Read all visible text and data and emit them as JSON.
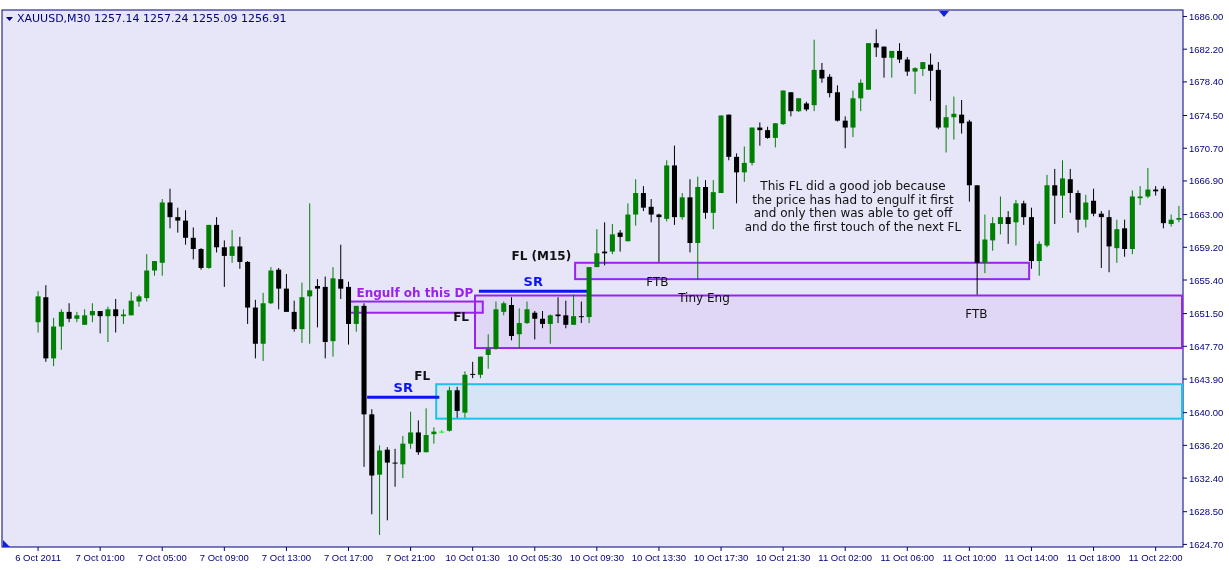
{
  "chart_data": {
    "type": "candlestick",
    "title": "XAUUSD,M30  1257.14 1257.24 1255.09 1256.91",
    "categories": [
      "6 Oct 2011",
      null,
      null,
      null,
      null,
      null,
      null,
      null,
      "7 Oct 01:00",
      null,
      null,
      null,
      null,
      null,
      null,
      null,
      "7 Oct 05:00",
      null,
      null,
      null,
      null,
      null,
      null,
      null,
      "7 Oct 09:00",
      null,
      null,
      null,
      null,
      null,
      null,
      null,
      "7 Oct 13:00",
      null,
      null,
      null,
      null,
      null,
      null,
      null,
      "7 Oct 17:00",
      null,
      null,
      null,
      null,
      null,
      null,
      null,
      "7 Oct 21:00",
      null,
      null,
      null,
      null,
      null,
      null,
      null,
      "10 Oct 01:30",
      null,
      null,
      null,
      null,
      null,
      null,
      null,
      "10 Oct 05:30",
      null,
      null,
      null,
      null,
      null,
      null,
      null,
      "10 Oct 09:30",
      null,
      null,
      null,
      null,
      null,
      null,
      null,
      "10 Oct 13:30",
      null,
      null,
      null,
      null,
      null,
      null,
      null,
      "10 Oct 17:30",
      null,
      null,
      null,
      null,
      null,
      null,
      null,
      "10 Oct 21:30",
      null,
      null,
      null,
      null,
      null,
      null,
      null,
      "11 Oct 02:00",
      null,
      null,
      null,
      null,
      null,
      null,
      null,
      "11 Oct 06:00",
      null,
      null,
      null,
      null,
      null,
      null,
      null,
      "11 Oct 10:00",
      null,
      null,
      null,
      null,
      null,
      null,
      null,
      "11 Oct 14:00",
      null,
      null,
      null,
      null,
      null,
      null,
      null,
      "11 Oct 18:00",
      null,
      null,
      null,
      null,
      null,
      null,
      null,
      "11 Oct 22:00",
      null,
      null,
      null
    ],
    "ohlc": [
      [
        1650.5,
        1654.1,
        1649.3,
        1653.5
      ],
      [
        1653.4,
        1654.8,
        1645.9,
        1646.3
      ],
      [
        1646.3,
        1651.0,
        1645.4,
        1650.0
      ],
      [
        1650.0,
        1652.0,
        1647.3,
        1651.7
      ],
      [
        1651.7,
        1652.7,
        1650.5,
        1650.9
      ],
      [
        1650.9,
        1651.7,
        1650.5,
        1651.3
      ],
      [
        1650.2,
        1652.0,
        1650.2,
        1651.3
      ],
      [
        1651.3,
        1652.7,
        1650.5,
        1651.8
      ],
      [
        1651.8,
        1651.8,
        1649.2,
        1651.2
      ],
      [
        1651.2,
        1652.3,
        1648.2,
        1652.0
      ],
      [
        1652.0,
        1653.2,
        1649.3,
        1651.2
      ],
      [
        1651.2,
        1652.0,
        1650.3,
        1651.4
      ],
      [
        1651.3,
        1654.0,
        1651.3,
        1653.0
      ],
      [
        1652.9,
        1653.7,
        1652.3,
        1653.5
      ],
      [
        1653.3,
        1658.4,
        1652.9,
        1656.5
      ],
      [
        1656.5,
        1657.6,
        1655.9,
        1657.6
      ],
      [
        1657.4,
        1664.8,
        1655.9,
        1664.4
      ],
      [
        1664.4,
        1666.0,
        1661.4,
        1662.7
      ],
      [
        1662.7,
        1663.8,
        1660.9,
        1662.3
      ],
      [
        1662.3,
        1663.5,
        1659.5,
        1660.3
      ],
      [
        1660.3,
        1661.5,
        1657.8,
        1659.0
      ],
      [
        1659.0,
        1659.1,
        1656.6,
        1656.8
      ],
      [
        1656.8,
        1661.8,
        1656.7,
        1661.8
      ],
      [
        1661.8,
        1662.7,
        1658.6,
        1659.2
      ],
      [
        1659.2,
        1660.0,
        1654.6,
        1658.2
      ],
      [
        1658.2,
        1661.2,
        1657.4,
        1659.3
      ],
      [
        1659.3,
        1660.4,
        1656.7,
        1657.5
      ],
      [
        1657.5,
        1657.6,
        1650.3,
        1652.2
      ],
      [
        1652.2,
        1653.1,
        1646.3,
        1648.0
      ],
      [
        1648.0,
        1653.9,
        1646.0,
        1652.7
      ],
      [
        1652.7,
        1656.9,
        1652.6,
        1656.5
      ],
      [
        1656.6,
        1656.8,
        1652.0,
        1654.4
      ],
      [
        1654.4,
        1656.1,
        1651.7,
        1651.7
      ],
      [
        1651.7,
        1653.0,
        1649.4,
        1649.7
      ],
      [
        1649.7,
        1655.1,
        1648.1,
        1653.4
      ],
      [
        1653.5,
        1664.3,
        1648.0,
        1654.2
      ],
      [
        1654.7,
        1655.5,
        1649.9,
        1654.4
      ],
      [
        1654.6,
        1655.8,
        1646.3,
        1648.2
      ],
      [
        1648.3,
        1656.9,
        1646.5,
        1655.6
      ],
      [
        1655.5,
        1659.5,
        1653.2,
        1654.4
      ],
      [
        1654.6,
        1655.2,
        1647.9,
        1650.3
      ],
      [
        1650.3,
        1652.4,
        1649.4,
        1652.4
      ],
      [
        1652.4,
        1652.7,
        1633.7,
        1639.8
      ],
      [
        1639.8,
        1640.4,
        1628.2,
        1632.7
      ],
      [
        1632.8,
        1636.2,
        1625.8,
        1635.6
      ],
      [
        1635.7,
        1636.0,
        1627.5,
        1634.2
      ],
      [
        1634.2,
        1635.8,
        1631.4,
        1634.1
      ],
      [
        1634.0,
        1637.3,
        1632.4,
        1636.4
      ],
      [
        1636.4,
        1640.1,
        1635.8,
        1637.7
      ],
      [
        1637.7,
        1639.1,
        1635.1,
        1635.4
      ],
      [
        1635.4,
        1640.5,
        1635.4,
        1637.4
      ],
      [
        1637.5,
        1638.3,
        1636.4,
        1637.8
      ],
      [
        1637.8,
        1638.0,
        1637.6,
        1637.8
      ],
      [
        1637.9,
        1643.0,
        1637.8,
        1642.6
      ],
      [
        1642.6,
        1643.0,
        1639.4,
        1640.2
      ],
      [
        1640.0,
        1644.8,
        1639.4,
        1644.4
      ],
      [
        1644.5,
        1645.9,
        1644.0,
        1644.4
      ],
      [
        1644.4,
        1646.5,
        1644.0,
        1646.5
      ],
      [
        1646.7,
        1649.1,
        1645.1,
        1647.4
      ],
      [
        1647.4,
        1652.9,
        1647.3,
        1652.0
      ],
      [
        1651.7,
        1652.9,
        1651.3,
        1652.7
      ],
      [
        1652.5,
        1653.4,
        1648.4,
        1648.9
      ],
      [
        1649.1,
        1652.1,
        1647.4,
        1650.4
      ],
      [
        1650.4,
        1652.9,
        1650.3,
        1652.0
      ],
      [
        1651.6,
        1651.8,
        1648.5,
        1650.9
      ],
      [
        1650.9,
        1651.8,
        1649.8,
        1650.3
      ],
      [
        1650.3,
        1651.4,
        1648.0,
        1651.3
      ],
      [
        1651.4,
        1653.4,
        1650.4,
        1651.2
      ],
      [
        1651.3,
        1653.0,
        1649.8,
        1650.2
      ],
      [
        1650.2,
        1653.7,
        1650.2,
        1651.2
      ],
      [
        1651.2,
        1652.9,
        1650.4,
        1651.1
      ],
      [
        1651.1,
        1656.9,
        1650.4,
        1656.9
      ],
      [
        1656.9,
        1661.3,
        1656.9,
        1658.5
      ],
      [
        1658.7,
        1662.1,
        1657.1,
        1658.5
      ],
      [
        1658.7,
        1661.9,
        1658.4,
        1660.7
      ],
      [
        1660.9,
        1661.2,
        1658.7,
        1660.4
      ],
      [
        1659.9,
        1664.3,
        1659.9,
        1663.0
      ],
      [
        1663.0,
        1667.1,
        1661.7,
        1665.5
      ],
      [
        1665.5,
        1666.3,
        1663.4,
        1663.8
      ],
      [
        1663.9,
        1664.8,
        1662.1,
        1663.0
      ],
      [
        1663.0,
        1663.1,
        1657.5,
        1662.7
      ],
      [
        1662.5,
        1669.3,
        1662.2,
        1668.7
      ],
      [
        1668.7,
        1671.0,
        1661.8,
        1662.7
      ],
      [
        1662.7,
        1665.5,
        1662.4,
        1665.0
      ],
      [
        1665.0,
        1667.1,
        1658.6,
        1659.7
      ],
      [
        1659.7,
        1667.4,
        1655.4,
        1666.2
      ],
      [
        1666.2,
        1667.0,
        1662.5,
        1663.2
      ],
      [
        1663.2,
        1667.0,
        1661.3,
        1665.6
      ],
      [
        1665.5,
        1674.5,
        1665.5,
        1674.5
      ],
      [
        1674.6,
        1674.6,
        1669.3,
        1669.7
      ],
      [
        1669.7,
        1670.1,
        1664.3,
        1667.9
      ],
      [
        1667.9,
        1670.9,
        1666.8,
        1669.0
      ],
      [
        1669.0,
        1673.1,
        1668.7,
        1673.1
      ],
      [
        1673.1,
        1673.7,
        1671.0,
        1672.8
      ],
      [
        1672.8,
        1673.2,
        1671.8,
        1671.9
      ],
      [
        1671.9,
        1673.6,
        1670.8,
        1673.6
      ],
      [
        1673.5,
        1677.4,
        1673.4,
        1677.4
      ],
      [
        1677.2,
        1677.2,
        1674.4,
        1675.0
      ],
      [
        1675.0,
        1676.5,
        1674.9,
        1676.5
      ],
      [
        1675.9,
        1676.1,
        1675.0,
        1675.2
      ],
      [
        1675.7,
        1683.3,
        1675.0,
        1679.8
      ],
      [
        1679.8,
        1680.6,
        1678.3,
        1678.8
      ],
      [
        1679.0,
        1679.3,
        1676.6,
        1677.1
      ],
      [
        1677.2,
        1678.0,
        1673.8,
        1673.9
      ],
      [
        1673.9,
        1674.4,
        1670.7,
        1673.1
      ],
      [
        1673.1,
        1677.4,
        1672.0,
        1676.5
      ],
      [
        1676.5,
        1678.7,
        1675.0,
        1678.3
      ],
      [
        1677.5,
        1682.9,
        1677.5,
        1682.9
      ],
      [
        1682.9,
        1684.5,
        1681.3,
        1682.4
      ],
      [
        1682.5,
        1682.5,
        1678.9,
        1681.2
      ],
      [
        1681.2,
        1682.0,
        1678.9,
        1682.0
      ],
      [
        1682.0,
        1682.9,
        1680.6,
        1681.0
      ],
      [
        1681.0,
        1681.3,
        1679.1,
        1679.6
      ],
      [
        1679.6,
        1680.1,
        1677.0,
        1680.0
      ],
      [
        1679.9,
        1680.7,
        1679.1,
        1680.7
      ],
      [
        1680.4,
        1681.7,
        1676.2,
        1679.7
      ],
      [
        1679.8,
        1680.7,
        1672.9,
        1673.1
      ],
      [
        1673.1,
        1675.7,
        1670.2,
        1674.3
      ],
      [
        1674.3,
        1676.7,
        1671.7,
        1674.7
      ],
      [
        1674.6,
        1676.3,
        1672.4,
        1673.6
      ],
      [
        1673.8,
        1674.0,
        1664.5,
        1666.4
      ],
      [
        1666.4,
        1666.4,
        1653.7,
        1657.4
      ],
      [
        1657.4,
        1663.0,
        1656.2,
        1660.1
      ],
      [
        1660.0,
        1662.7,
        1658.8,
        1662.0
      ],
      [
        1661.9,
        1665.1,
        1660.7,
        1662.7
      ],
      [
        1662.7,
        1663.4,
        1659.6,
        1661.9
      ],
      [
        1662.1,
        1664.7,
        1659.4,
        1664.3
      ],
      [
        1664.3,
        1664.6,
        1661.8,
        1662.7
      ],
      [
        1662.7,
        1663.8,
        1656.7,
        1657.6
      ],
      [
        1657.6,
        1659.9,
        1655.9,
        1659.6
      ],
      [
        1659.4,
        1667.6,
        1659.2,
        1666.4
      ],
      [
        1666.4,
        1668.3,
        1661.9,
        1665.2
      ],
      [
        1665.2,
        1669.3,
        1662.6,
        1667.2
      ],
      [
        1667.1,
        1668.3,
        1663.2,
        1665.5
      ],
      [
        1665.5,
        1665.8,
        1660.9,
        1662.4
      ],
      [
        1662.4,
        1665.3,
        1661.5,
        1664.4
      ],
      [
        1664.6,
        1666.0,
        1662.8,
        1663.1
      ],
      [
        1663.1,
        1663.4,
        1656.8,
        1662.7
      ],
      [
        1662.7,
        1663.5,
        1656.3,
        1659.3
      ],
      [
        1659.1,
        1662.4,
        1657.4,
        1661.3
      ],
      [
        1661.4,
        1662.4,
        1658.1,
        1659.0
      ],
      [
        1659.0,
        1665.8,
        1658.4,
        1665.1
      ],
      [
        1664.9,
        1666.3,
        1664.1,
        1665.1
      ],
      [
        1665.1,
        1668.4,
        1664.9,
        1665.9
      ],
      [
        1665.9,
        1666.3,
        1665.2,
        1665.7
      ],
      [
        1666.0,
        1666.3,
        1661.4,
        1662.0
      ],
      [
        1661.9,
        1663.0,
        1661.6,
        1662.4
      ],
      [
        1662.4,
        1664.0,
        1662.1,
        1662.6
      ]
    ],
    "colors": [
      "#008000",
      "#000000",
      "#008000",
      "#008000",
      "#000000",
      "#008000",
      "#008000",
      "#008000",
      "#000000",
      "#008000",
      "#000000",
      "#008000",
      "#008000",
      "#008000",
      "#008000",
      "#008000",
      "#008000",
      "#000000",
      "#000000",
      "#000000",
      "#000000",
      "#000000",
      "#008000",
      "#000000",
      "#000000",
      "#008000",
      "#000000",
      "#000000",
      "#000000",
      "#008000",
      "#008000",
      "#000000",
      "#000000",
      "#000000",
      "#008000",
      "#008000",
      "#000000",
      "#000000",
      "#008000",
      "#000000",
      "#000000",
      "#008000",
      "#000000",
      "#000000",
      "#008000",
      "#000000",
      "#000000",
      "#008000",
      "#008000",
      "#000000",
      "#008000",
      "#008000",
      "#00ff00",
      "#008000",
      "#000000",
      "#008000",
      "#000000",
      "#008000",
      "#008000",
      "#008000",
      "#008000",
      "#000000",
      "#008000",
      "#008000",
      "#000000",
      "#000000",
      "#008000",
      "#000000",
      "#000000",
      "#008000",
      "#000000",
      "#008000",
      "#008000",
      "#000000",
      "#008000",
      "#000000",
      "#008000",
      "#008000",
      "#000000",
      "#000000",
      "#000000",
      "#008000",
      "#000000",
      "#008000",
      "#000000",
      "#008000",
      "#000000",
      "#008000",
      "#008000",
      "#000000",
      "#000000",
      "#008000",
      "#008000",
      "#000000",
      "#000000",
      "#008000",
      "#008000",
      "#000000",
      "#008000",
      "#000000",
      "#008000",
      "#000000",
      "#000000",
      "#000000",
      "#000000",
      "#008000",
      "#008000",
      "#008000",
      "#000000",
      "#000000",
      "#008000",
      "#000000",
      "#000000",
      "#008000",
      "#008000",
      "#000000",
      "#000000",
      "#008000",
      "#008000",
      "#000000",
      "#000000",
      "#000000",
      "#008000",
      "#008000",
      "#008000",
      "#000000",
      "#008000",
      "#000000",
      "#000000",
      "#008000",
      "#008000",
      "#000000",
      "#008000",
      "#000000",
      "#000000",
      "#008000",
      "#000000",
      "#000000",
      "#000000",
      "#008000",
      "#000000",
      "#008000",
      "#008000",
      "#008000",
      "#000000",
      "#000000",
      "#008000",
      "#008000"
    ],
    "ylim": [
      1624.4,
      1686.75
    ],
    "yticks": [
      {
        "value": 1624.7,
        "label": "1624.70"
      },
      {
        "value": 1628.5,
        "label": "1628.50"
      },
      {
        "value": 1632.4,
        "label": "1632.40"
      },
      {
        "value": 1636.2,
        "label": "1636.20"
      },
      {
        "value": 1640,
        "label": "1640.00"
      },
      {
        "value": 1643.9,
        "label": "1643.90"
      },
      {
        "value": 1647.7,
        "label": "1647.70"
      },
      {
        "value": 1651.5,
        "label": "1651.50"
      },
      {
        "value": 1655.4,
        "label": "1655.40"
      },
      {
        "value": 1659.2,
        "label": "1659.20"
      },
      {
        "value": 1663,
        "label": "1663.00"
      },
      {
        "value": 1666.9,
        "label": "1666.90"
      },
      {
        "value": 1670.7,
        "label": "1670.70"
      },
      {
        "value": 1674.5,
        "label": "1674.50"
      },
      {
        "value": 1678.4,
        "label": "1678.40"
      },
      {
        "value": 1682.2,
        "label": "1682.20"
      },
      {
        "value": 1686,
        "label": "1686.00"
      }
    ],
    "bands": [
      {
        "axis": "y",
        "from": 1651.6,
        "to": 1652.9,
        "label": "Engulf oh this DP",
        "color": "#9a22f0"
      },
      {
        "axis": "y",
        "from": 1647.5,
        "to": 1653.6,
        "label": "FL",
        "color": "#9a22f0"
      },
      {
        "axis": "y",
        "from": 1655.5,
        "to": 1657.4,
        "label": "FL (M15)",
        "color": "#9a22f0"
      },
      {
        "axis": "y",
        "from": 1639.3,
        "to": 1643.3,
        "label": "FL",
        "color": "#1ec0f0"
      }
    ],
    "ref_lines": [
      {
        "axis": "y",
        "value": 1641.8,
        "label": "SR",
        "color": "#0a14f5"
      },
      {
        "axis": "y",
        "value": 1654.1,
        "label": "SR",
        "color": "#0a14f5"
      }
    ],
    "annotations": [
      "FTB",
      "Tiny Eng",
      "FTB",
      "This FL did a good job because\nthe price has had to engulf it first\nand only then was able to get off\nand do the first touch of the next FL"
    ]
  }
}
